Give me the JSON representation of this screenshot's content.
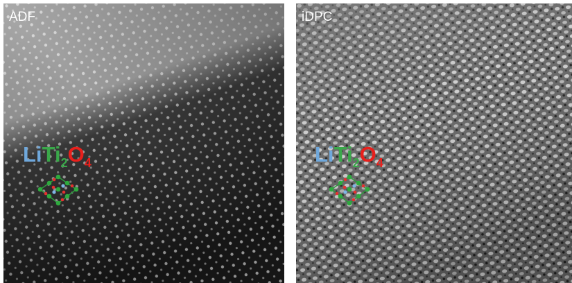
{
  "panels": [
    {
      "label": "ADF",
      "formula": {
        "li": "Li",
        "ti": "Ti",
        "ti_sub": "2",
        "o": "O",
        "o_sub": "4"
      }
    },
    {
      "label": "iDPC",
      "formula": {
        "li": "Li",
        "ti": "Ti",
        "ti_sub": "2",
        "o": "O",
        "o_sub": "4"
      }
    }
  ]
}
